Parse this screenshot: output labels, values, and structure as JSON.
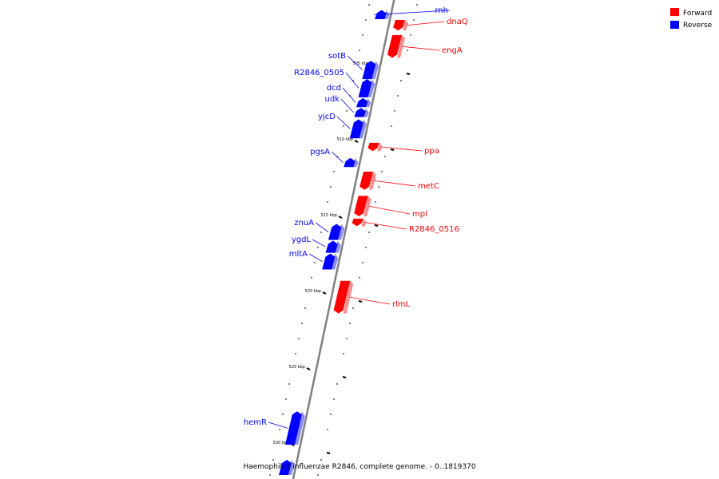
{
  "caption": "Haemophilus influenzae R2846, complete genome. - 0..1819370",
  "colors": {
    "forward": "#ff0000",
    "reverse": "#0000ff",
    "backbone": "#808080"
  },
  "legend": [
    {
      "label": "Forward",
      "strand": "forward"
    },
    {
      "label": "Reverse",
      "strand": "reverse"
    }
  ],
  "ticks": [
    {
      "label": "505 kbp",
      "position_kbp": 505
    },
    {
      "label": "510 kbp",
      "position_kbp": 510
    },
    {
      "label": "515 kbp",
      "position_kbp": 515
    },
    {
      "label": "520 kbp",
      "position_kbp": 520
    },
    {
      "label": "525 kbp",
      "position_kbp": 525
    },
    {
      "label": "530 kbp",
      "position_kbp": 530
    }
  ],
  "genes": [
    {
      "name": "",
      "strand": "reverse",
      "start_kbp": 501.35,
      "end_kbp": 501.95
    },
    {
      "name": "rnh",
      "strand": "reverse",
      "start_kbp": 501.35,
      "end_kbp": 501.95
    },
    {
      "name": "dnaQ",
      "strand": "forward",
      "start_kbp": 502.0,
      "end_kbp": 502.7
    },
    {
      "name": "engA",
      "strand": "forward",
      "start_kbp": 503.0,
      "end_kbp": 504.5
    },
    {
      "name": "sotB",
      "strand": "reverse",
      "start_kbp": 504.7,
      "end_kbp": 505.9
    },
    {
      "name": "R2846_0505",
      "strand": "reverse",
      "start_kbp": 505.9,
      "end_kbp": 507.1
    },
    {
      "name": "dcd",
      "strand": "reverse",
      "start_kbp": 507.15,
      "end_kbp": 507.75
    },
    {
      "name": "udk",
      "strand": "reverse",
      "start_kbp": 507.8,
      "end_kbp": 508.4
    },
    {
      "name": "yjcD",
      "strand": "reverse",
      "start_kbp": 508.55,
      "end_kbp": 509.8
    },
    {
      "name": "ppa",
      "strand": "forward",
      "start_kbp": 510.1,
      "end_kbp": 510.65
    },
    {
      "name": "pgsA",
      "strand": "reverse",
      "start_kbp": 511.1,
      "end_kbp": 511.7
    },
    {
      "name": "metC",
      "strand": "forward",
      "start_kbp": 512.0,
      "end_kbp": 513.2
    },
    {
      "name": "mpl",
      "strand": "forward",
      "start_kbp": 513.6,
      "end_kbp": 514.95
    },
    {
      "name": "R2846_0516",
      "strand": "forward",
      "start_kbp": 515.1,
      "end_kbp": 515.6
    },
    {
      "name": "znuA",
      "strand": "reverse",
      "start_kbp": 515.45,
      "end_kbp": 516.5
    },
    {
      "name": "ygdL",
      "strand": "reverse",
      "start_kbp": 516.55,
      "end_kbp": 517.35
    },
    {
      "name": "mltA",
      "strand": "reverse",
      "start_kbp": 517.4,
      "end_kbp": 518.45
    },
    {
      "name": "rlmL",
      "strand": "forward",
      "start_kbp": 519.2,
      "end_kbp": 521.35
    },
    {
      "name": "hemR",
      "strand": "reverse",
      "start_kbp": 527.8,
      "end_kbp": 530.0
    },
    {
      "name": "",
      "strand": "reverse",
      "start_kbp": 531.0,
      "end_kbp": 532.0
    }
  ]
}
